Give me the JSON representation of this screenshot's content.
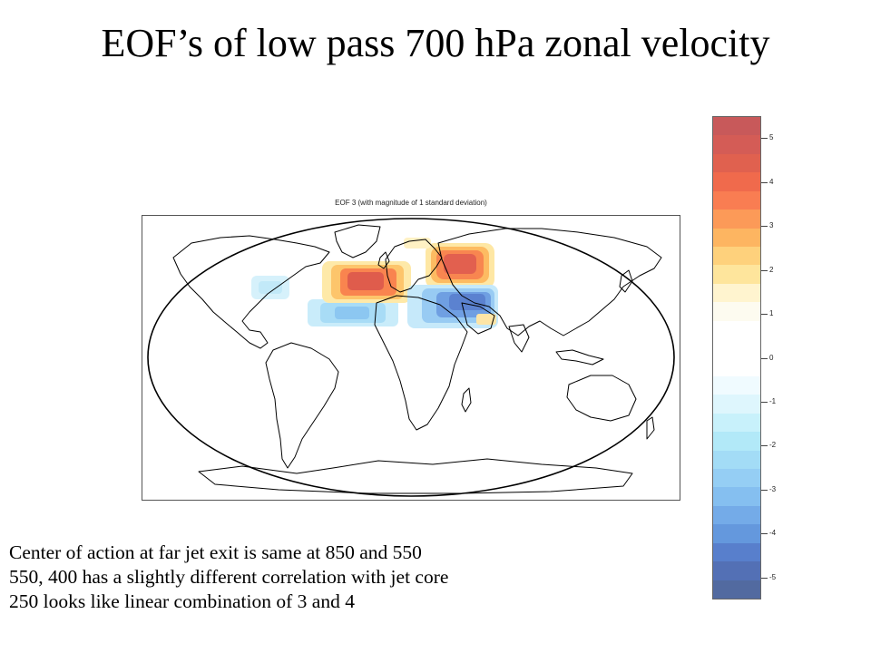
{
  "slide": {
    "title": "EOF’s of low pass 700 hPa zonal velocity"
  },
  "map": {
    "caption": "EOF 3  (with magnitude of 1 standard deviation)",
    "projection": "robinson-world",
    "anomalies": [
      {
        "region": "North Atlantic",
        "sign": "positive",
        "peak": 4.5
      },
      {
        "region": "Eastern Europe / Black Sea",
        "sign": "positive",
        "peak": 4.5
      },
      {
        "region": "Subtropical Atlantic",
        "sign": "negative",
        "peak": -2.5
      },
      {
        "region": "Mediterranean / Middle East",
        "sign": "negative",
        "peak": -4.0
      },
      {
        "region": "Western Atlantic",
        "sign": "negative",
        "peak": -1.5
      },
      {
        "region": "Northern Scandinavia",
        "sign": "positive",
        "peak": 1.0
      }
    ]
  },
  "colorbar": {
    "labels": [
      "5",
      "4",
      "3",
      "2",
      "1",
      "0",
      "-1",
      "-2",
      "-3",
      "-4",
      "-5"
    ],
    "range": [
      -5.5,
      5.5
    ],
    "colors": [
      "#c8595a",
      "#d45c56",
      "#e0614f",
      "#f06a4c",
      "#f97d52",
      "#fc9a58",
      "#fdb561",
      "#fed17c",
      "#fee59c",
      "#fff4cf",
      "#fdfbf0",
      "#ffffff",
      "#ffffff",
      "#ffffff",
      "#f0fbff",
      "#def6fd",
      "#c8f1fb",
      "#b2e9f8",
      "#a3dcf6",
      "#95cef4",
      "#85bff0",
      "#74abe8",
      "#6498dd",
      "#587fcc",
      "#5370b5",
      "#526aa0"
    ]
  },
  "notes": [
    "Center of action at far jet exit is same at 850 and 550",
    "550, 400  has a slightly different correlation with jet core",
    "250 looks like linear combination of 3 and 4"
  ]
}
